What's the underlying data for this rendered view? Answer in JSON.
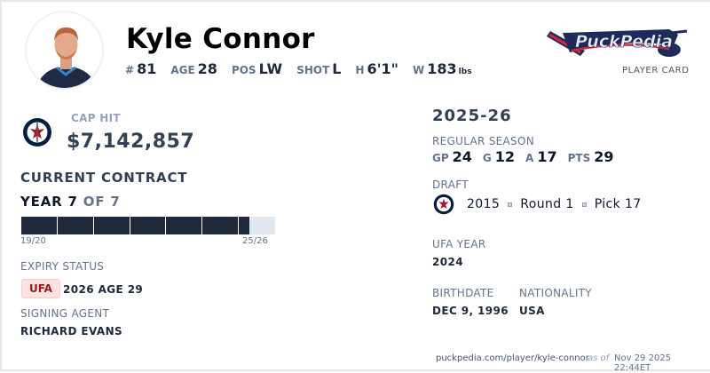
{
  "player": {
    "name": "Kyle Connor",
    "photo_alt": "Kyle Connor headshot"
  },
  "meta": [
    {
      "key": "#",
      "value": "81"
    },
    {
      "key": "AGE",
      "value": "28"
    },
    {
      "key": "POS",
      "value": "LW"
    },
    {
      "key": "SHOT",
      "value": "L"
    },
    {
      "key": "H",
      "value": "6'1\""
    },
    {
      "key": "W",
      "value": "183",
      "unit": "lbs"
    }
  ],
  "brand": {
    "logo_text": "PuckPedia",
    "subtitle": "PLAYER CARD"
  },
  "contract": {
    "cap_hit_label": "CAP HIT",
    "cap_hit": "$7,142,857",
    "heading": "CURRENT CONTRACT",
    "year_label": "YEAR 7",
    "of_label": "OF 7",
    "years_total": 7,
    "progress": 0.9,
    "start_label": "19/20",
    "end_label": "25/26",
    "expiry_label": "EXPIRY STATUS",
    "expiry_badge": "UFA",
    "expiry_detail": "2026 AGE 29",
    "agent_label": "SIGNING AGENT",
    "agent": "RICHARD EVANS"
  },
  "season": {
    "title": "2025-26",
    "label": "REGULAR SEASON",
    "stats": [
      {
        "key": "GP",
        "value": "24"
      },
      {
        "key": "G",
        "value": "12"
      },
      {
        "key": "A",
        "value": "17"
      },
      {
        "key": "PTS",
        "value": "29"
      }
    ]
  },
  "draft": {
    "label": "DRAFT",
    "year": "2015",
    "round": "Round 1",
    "pick": "Pick 17"
  },
  "ufa": {
    "label": "UFA YEAR",
    "value": "2024"
  },
  "birth": {
    "label": "BIRTHDATE",
    "value": "DEC 9, 1996"
  },
  "nationality": {
    "label": "NATIONALITY",
    "value": "USA"
  },
  "footer": {
    "url": "puckpedia.com/player/kyle-connor",
    "as_of": "as of",
    "timestamp": "Nov 29 2025 22:44ET"
  },
  "colors": {
    "navy": "#1e293b",
    "team_navy": "#041e42",
    "team_red": "#ac162c",
    "ufa_bg": "#fee2e2",
    "ufa_text": "#991b1b"
  }
}
